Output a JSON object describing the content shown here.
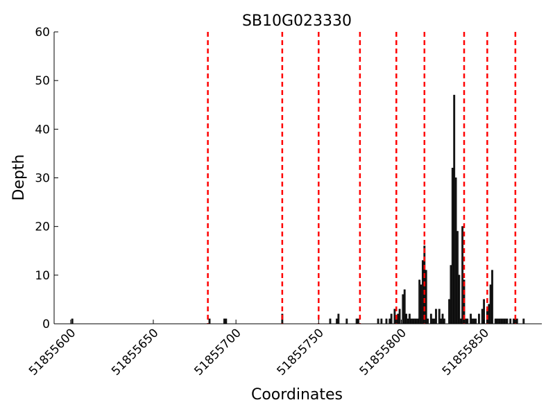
{
  "chart_data": {
    "type": "bar",
    "title": "SB10G023330",
    "xlabel": "Coordinates",
    "ylabel": "Depth",
    "xlim": [
      51855590,
      51855885
    ],
    "ylim": [
      0,
      60
    ],
    "xticks": [
      51855600,
      51855650,
      51855700,
      51855750,
      51855800,
      51855850
    ],
    "yticks": [
      0,
      10,
      20,
      30,
      40,
      50,
      60
    ],
    "grid": false,
    "bar_color": "#222222",
    "bar_edge_color": "#000000",
    "vline_color": "#ff0000",
    "series": [
      {
        "x": [
          51855601,
          51855684,
          51855693,
          51855694,
          51855728,
          51855757,
          51855761,
          51855762,
          51855767,
          51855773,
          51855774,
          51855786,
          51855788,
          51855791,
          51855793,
          51855794,
          51855796,
          51855797,
          51855798,
          51855799,
          51855801,
          51855802,
          51855803,
          51855804,
          51855805,
          51855806,
          51855807,
          51855808,
          51855809,
          51855810,
          51855811,
          51855812,
          51855813,
          51855814,
          51855815,
          51855816,
          51855818,
          51855819,
          51855820,
          51855821,
          51855823,
          51855824,
          51855825,
          51855826,
          51855829,
          51855830,
          51855831,
          51855832,
          51855833,
          51855834,
          51855835,
          51855836,
          51855837,
          51855838,
          51855839,
          51855840,
          51855842,
          51855843,
          51855844,
          51855845,
          51855847,
          51855849,
          51855850,
          51855852,
          51855853,
          51855854,
          51855855,
          51855857,
          51855858,
          51855859,
          51855860,
          51855861,
          51855862,
          51855863,
          51855864,
          51855866,
          51855868,
          51855869,
          51855870,
          51855874
        ],
        "values": [
          1,
          1,
          1,
          1,
          2,
          1,
          1,
          2,
          1,
          1,
          1,
          1,
          1,
          1,
          1,
          2,
          3,
          1,
          2,
          3,
          6,
          7,
          2,
          1,
          2,
          1,
          1,
          1,
          1,
          1,
          9,
          8,
          13,
          16,
          11,
          1,
          2,
          1,
          1,
          3,
          3,
          1,
          2,
          1,
          5,
          12,
          32,
          47,
          30,
          19,
          10,
          1,
          20,
          9,
          1,
          1,
          2,
          1,
          1,
          1,
          2,
          3,
          5,
          3,
          4,
          8,
          11,
          1,
          1,
          1,
          1,
          1,
          1,
          1,
          1,
          1,
          1,
          1,
          1,
          1
        ]
      }
    ],
    "vlines": [
      51855683,
      51855728,
      51855750,
      51855775,
      51855797,
      51855814,
      51855838,
      51855852,
      51855869
    ]
  }
}
